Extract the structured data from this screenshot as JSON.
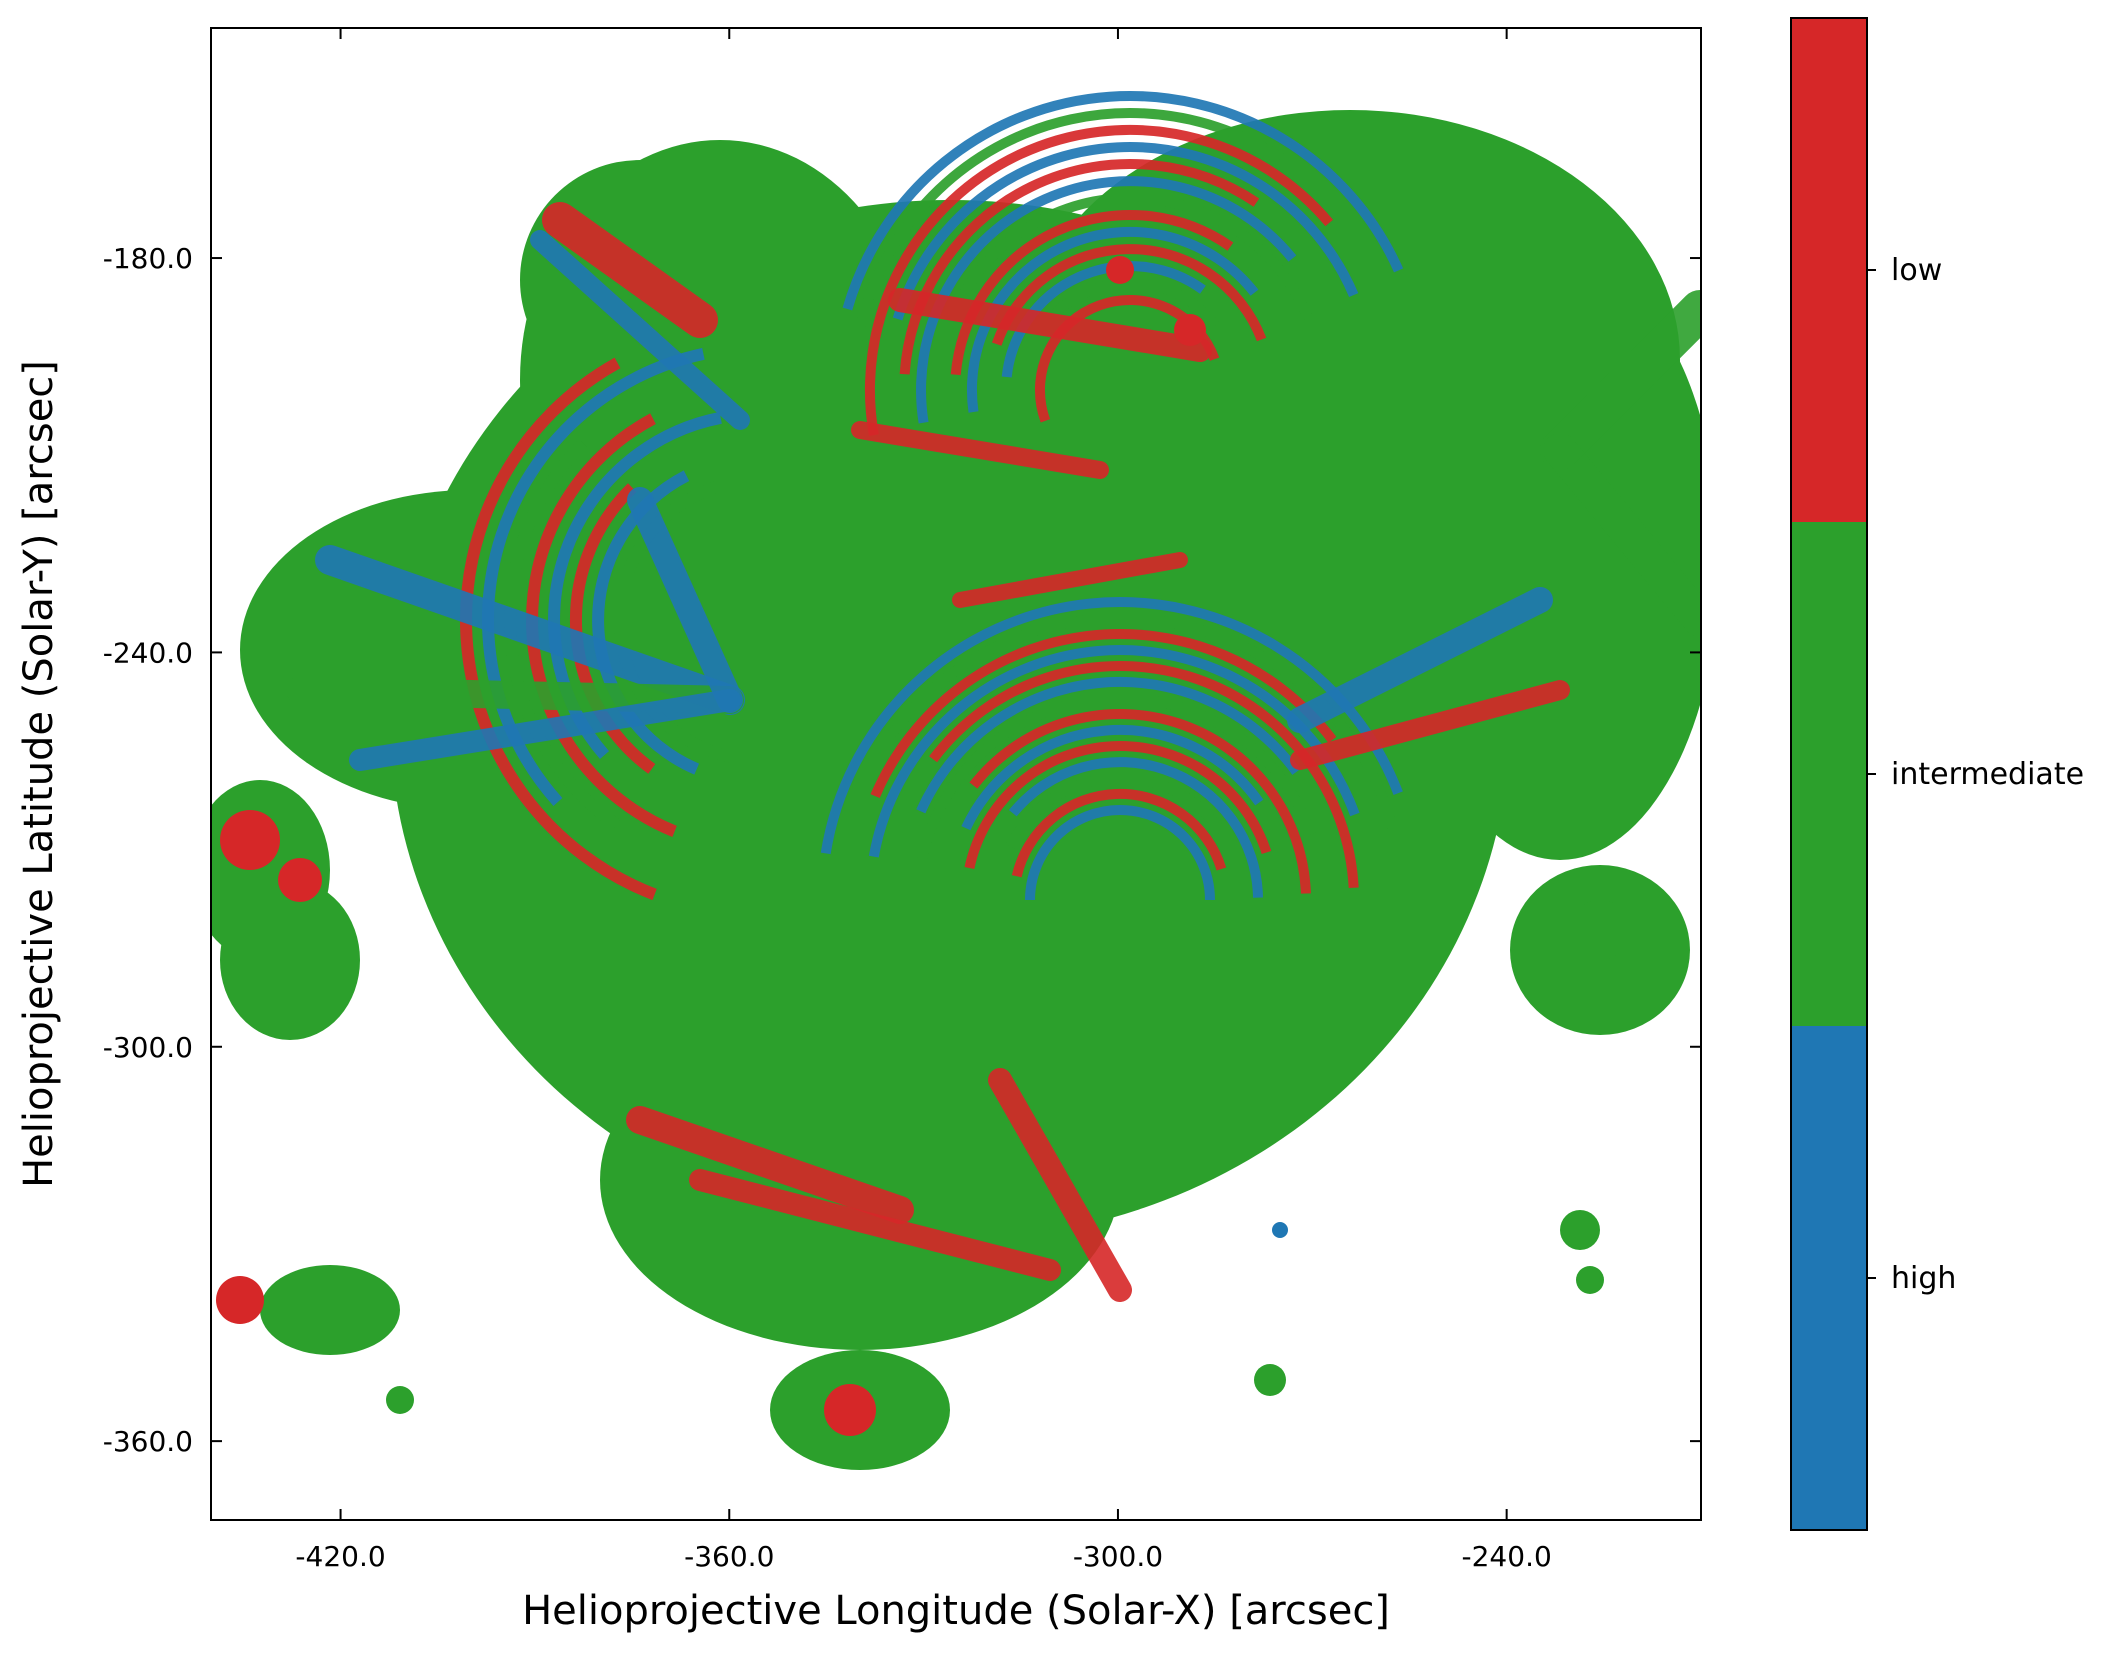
{
  "chart_data": {
    "type": "heatmap",
    "title": "",
    "xlabel": "Helioprojective Longitude (Solar-X) [arcsec]",
    "ylabel": "Helioprojective Latitude (Solar-Y) [arcsec]",
    "xlim": [
      -440.0,
      -210.0
    ],
    "ylim": [
      -372.0,
      -145.0
    ],
    "x_ticks": [
      -420.0,
      -360.0,
      -300.0,
      -240.0
    ],
    "x_tick_labels": [
      "-420.0",
      "-360.0",
      "-300.0",
      "-240.0"
    ],
    "y_ticks": [
      -180.0,
      -240.0,
      -300.0,
      -360.0
    ],
    "y_tick_labels": [
      "-180.0",
      "-240.0",
      "-300.0",
      "-360.0"
    ],
    "grid": false,
    "categories": [
      "high",
      "intermediate",
      "low"
    ],
    "category_colors": {
      "high": "#1f77b4",
      "intermediate": "#2ca02c",
      "low": "#d62728"
    },
    "colorbar": {
      "labels": [
        "low",
        "intermediate",
        "high"
      ],
      "placement": "right"
    }
  }
}
